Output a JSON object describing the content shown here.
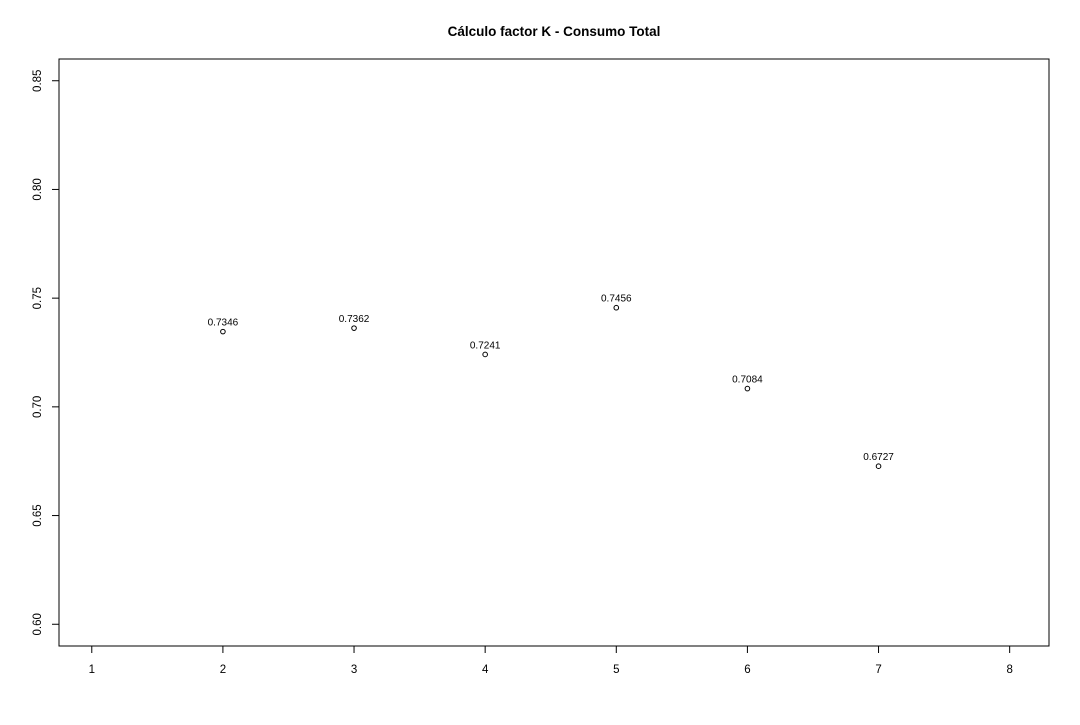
{
  "chart_data": {
    "type": "scatter",
    "title": "Cálculo factor K - Consumo Total",
    "xlabel": "",
    "ylabel": "",
    "x": [
      2,
      3,
      4,
      5,
      6,
      7
    ],
    "values": [
      0.7346,
      0.7362,
      0.7241,
      0.7456,
      0.7084,
      0.6727
    ],
    "point_labels": [
      "0.7346",
      "0.7362",
      "0.7241",
      "0.7456",
      "0.7084",
      "0.6727"
    ],
    "xlim": [
      0.75,
      8.3
    ],
    "ylim": [
      0.59,
      0.86
    ],
    "x_ticks": [
      1,
      2,
      3,
      4,
      5,
      6,
      7,
      8
    ],
    "x_tick_labels": [
      "1",
      "2",
      "3",
      "4",
      "5",
      "6",
      "7",
      "8"
    ],
    "y_ticks": [
      0.6,
      0.65,
      0.7,
      0.75,
      0.8,
      0.85
    ],
    "y_tick_labels": [
      "0.60",
      "0.65",
      "0.70",
      "0.75",
      "0.80",
      "0.85"
    ],
    "grid": false,
    "marker": "open-circle",
    "colors": {
      "axis": "#000000",
      "points": "#000000",
      "background": "#ffffff"
    }
  }
}
